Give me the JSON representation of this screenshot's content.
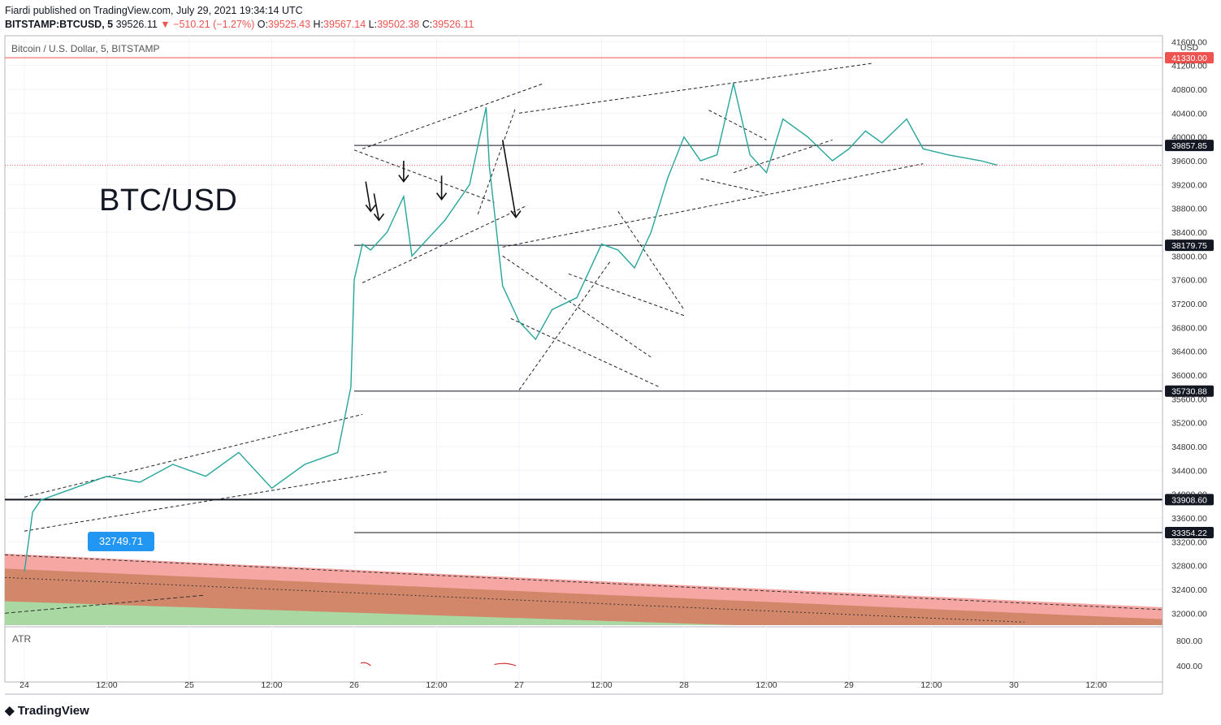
{
  "header": {
    "publisher": "Fiardi published on TradingView.com, July 29, 2021 19:34:14 UTC",
    "ticker": "BITSTAMP:BTCUSD, 5",
    "price": "39526.11",
    "change_arrow": "▼",
    "change": "−510.21 (−1.27%)",
    "o_label": "O:",
    "o_value": "39525.43",
    "h_label": "H:",
    "h_value": "39567.14",
    "l_label": "L:",
    "l_value": "39502.38",
    "c_label": "C:",
    "c_value": "39526.11"
  },
  "series_title": "Bitcoin / U.S. Dollar, 5, BITSTAMP",
  "watermark": "BTC/USD",
  "atr_label": "ATR",
  "callout": "32749.71",
  "currency": "USD",
  "footer": "TradingView",
  "chart_data": {
    "type": "line",
    "xlabel": "",
    "ylabel": "",
    "ylim": [
      31800,
      41700
    ],
    "x_ticks": [
      "24",
      "12:00",
      "25",
      "12:00",
      "26",
      "12:00",
      "27",
      "12:00",
      "28",
      "12:00",
      "29",
      "12:00",
      "30",
      "12:00"
    ],
    "y_ticks": [
      41600,
      41200,
      40800,
      40400,
      40000,
      39600,
      39200,
      38800,
      38400,
      38000,
      37600,
      37200,
      36800,
      36400,
      36000,
      35600,
      35200,
      34800,
      34400,
      34000,
      33600,
      33200,
      32800,
      32400,
      32000
    ],
    "atr_ticks": [
      "800.00",
      "400.00"
    ],
    "horizontal_levels": [
      {
        "label": "41330.00",
        "value": 41330,
        "color": "#ef5350"
      },
      {
        "label": "39857.85",
        "value": 39857.85,
        "color": "#131722"
      },
      {
        "label": "38179.75",
        "value": 38179.75,
        "color": "#131722"
      },
      {
        "label": "35730.88",
        "value": 35730.88,
        "color": "#131722"
      },
      {
        "label": "33908.60",
        "value": 33908.6,
        "color": "#131722"
      },
      {
        "label": "33354.22",
        "value": 33354.22,
        "color": "#131722"
      }
    ],
    "price_path": {
      "x_days": [
        0.0,
        0.05,
        0.1,
        0.3,
        0.5,
        0.7,
        0.9,
        1.1,
        1.3,
        1.5,
        1.7,
        1.9,
        1.98,
        2.0,
        2.05,
        2.1,
        2.2,
        2.3,
        2.35,
        2.45,
        2.55,
        2.7,
        2.8,
        2.82,
        2.9,
        3.0,
        3.1,
        3.2,
        3.35,
        3.5,
        3.6,
        3.7,
        3.8,
        3.9,
        4.0,
        4.1,
        4.2,
        4.3,
        4.4,
        4.5,
        4.6,
        4.75,
        4.9,
        5.0,
        5.1,
        5.2,
        5.35,
        5.45,
        5.6,
        5.8,
        5.9
      ],
      "y": [
        32700,
        33700,
        33900,
        34100,
        34300,
        34200,
        34500,
        34300,
        34700,
        34100,
        34500,
        34700,
        35800,
        37600,
        38200,
        38100,
        38400,
        39000,
        38000,
        38300,
        38600,
        39200,
        40500,
        39500,
        37500,
        36900,
        36600,
        37100,
        37300,
        38200,
        38100,
        37800,
        38400,
        39300,
        40000,
        39600,
        39700,
        40900,
        39700,
        39400,
        40300,
        40000,
        39600,
        39800,
        40100,
        39900,
        40300,
        39800,
        39700,
        39600,
        39526
      ]
    }
  }
}
